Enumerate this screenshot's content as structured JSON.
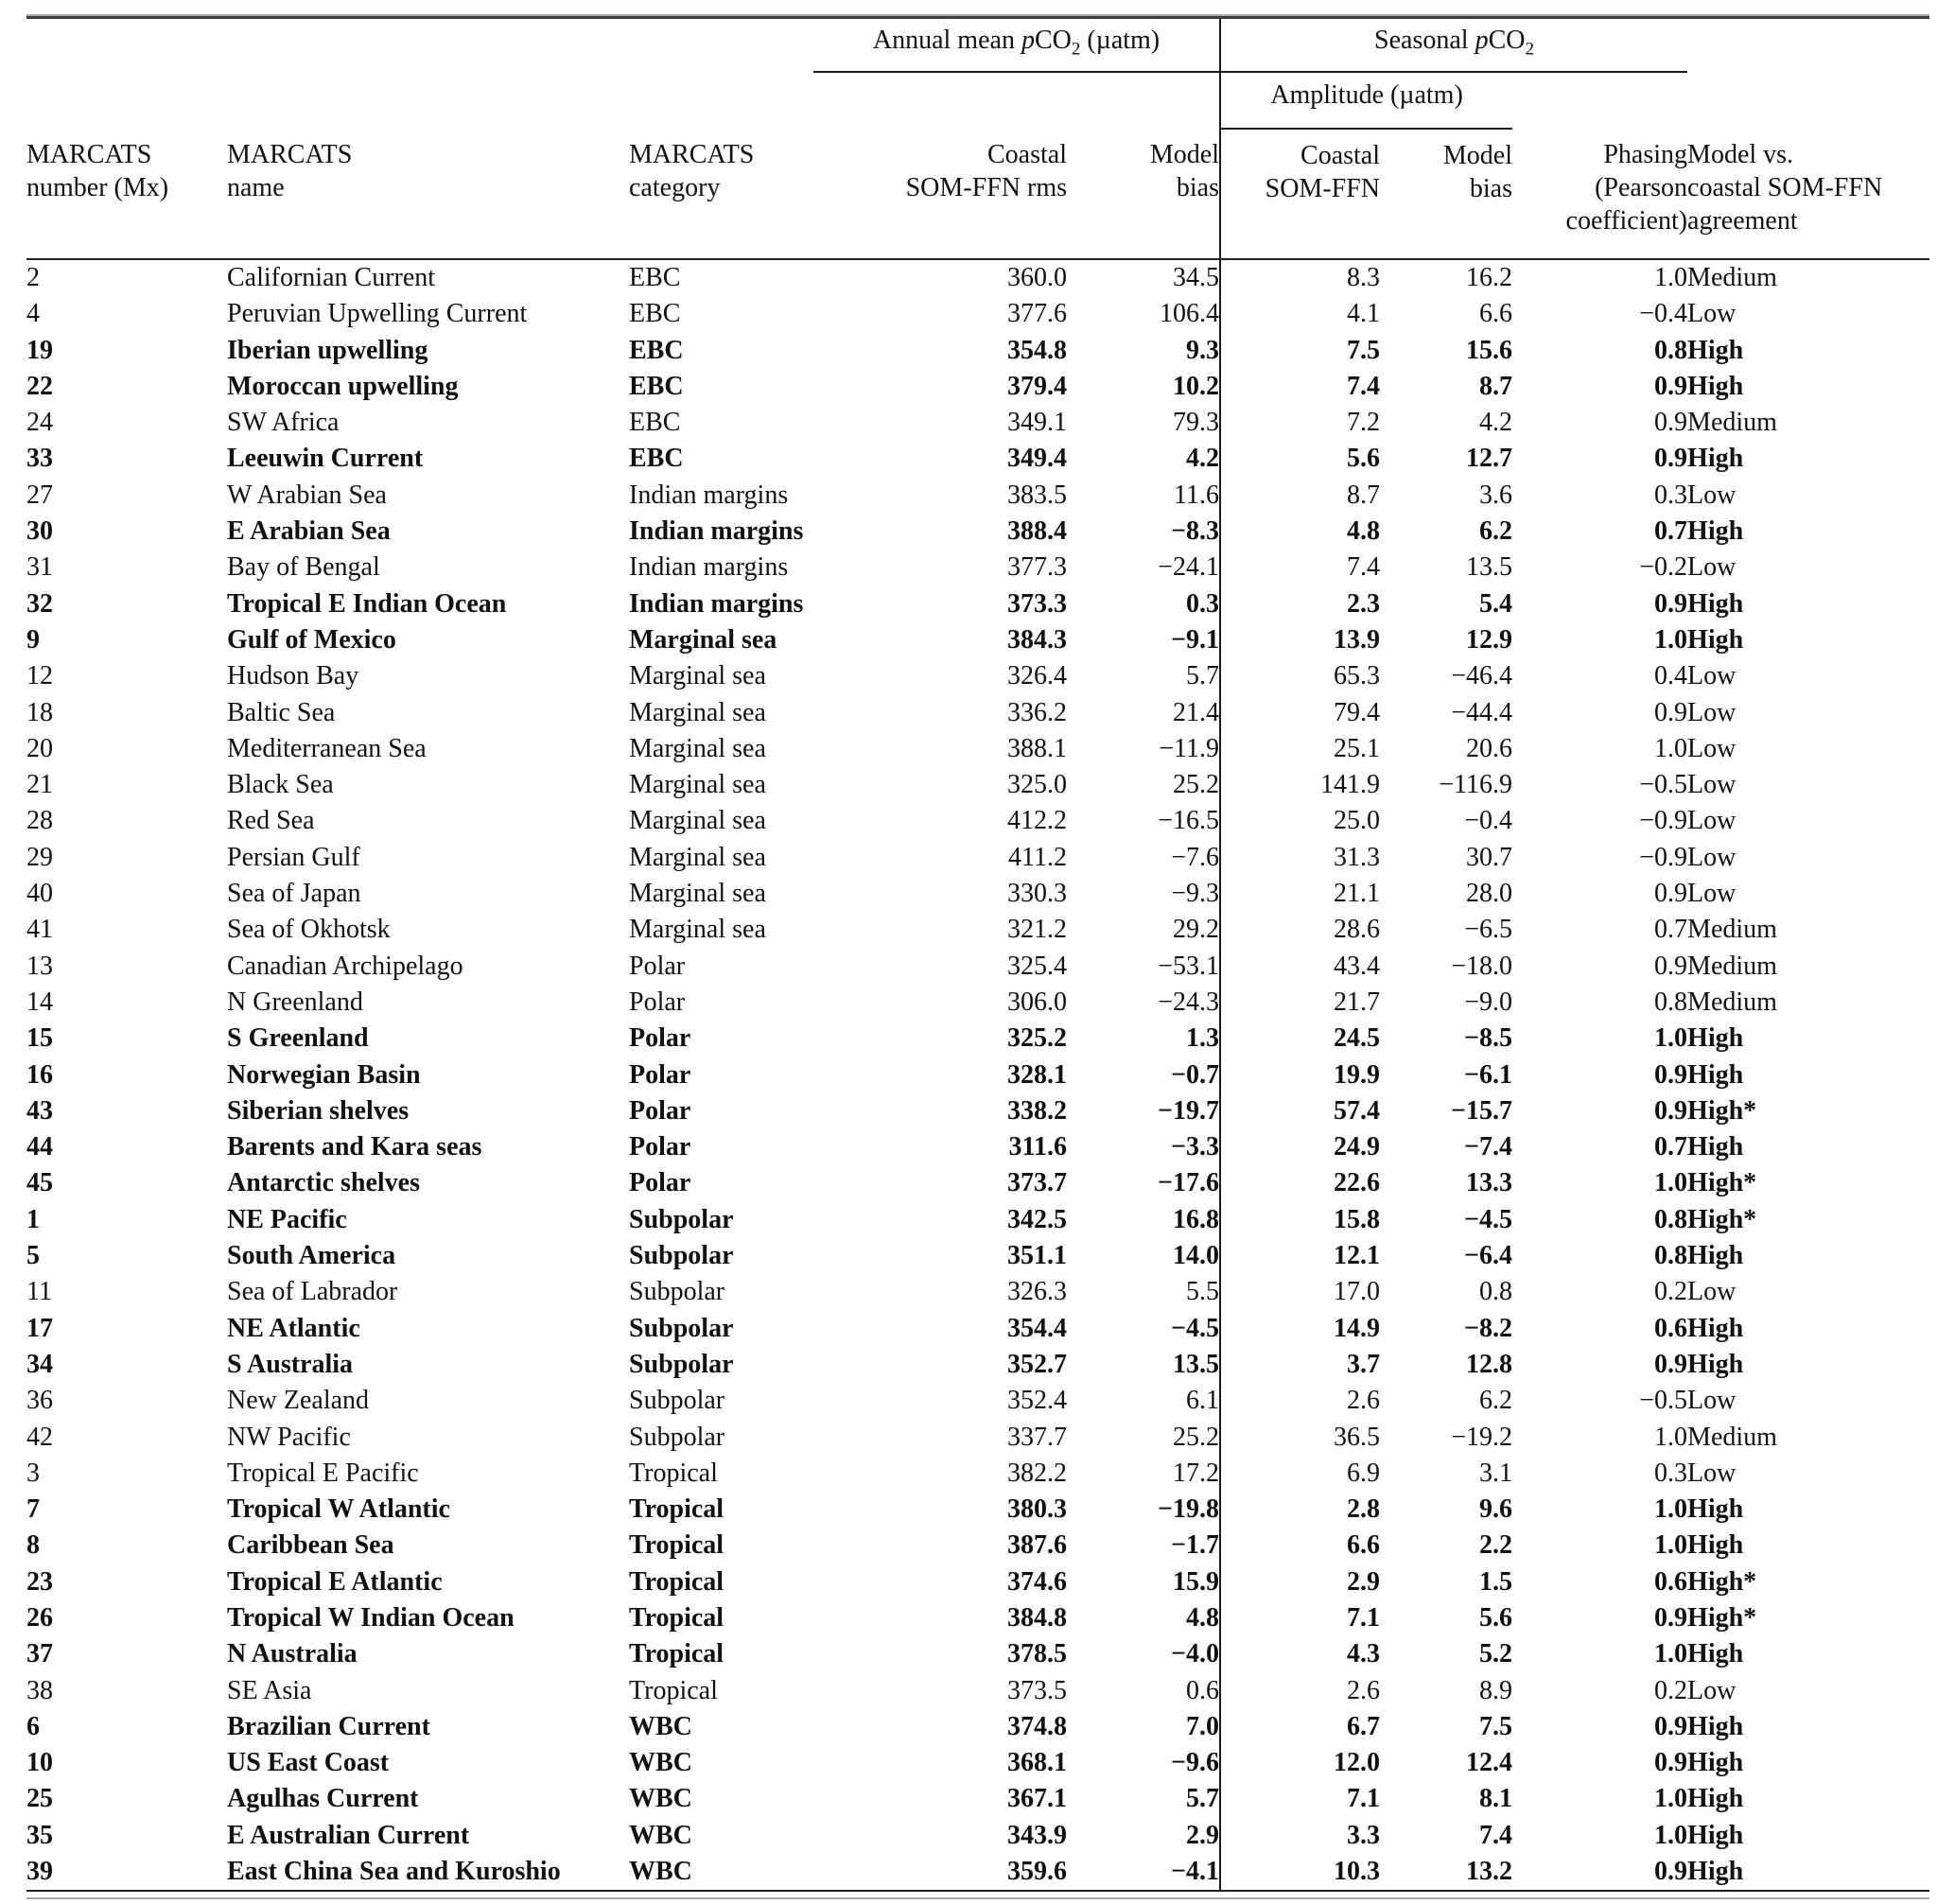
{
  "table": {
    "groups": {
      "annual": "Annual mean pCO2 (µatm)",
      "seasonal": "Seasonal pCO2",
      "amplitude": "Amplitude (µatm)"
    },
    "columns": [
      {
        "id": "mx",
        "lines": [
          "MARCATS",
          "number (Mx)"
        ]
      },
      {
        "id": "name",
        "lines": [
          "MARCATS",
          "name"
        ]
      },
      {
        "id": "category",
        "lines": [
          "MARCATS",
          "category"
        ]
      },
      {
        "id": "rms",
        "lines": [
          "Coastal",
          "SOM-FFN rms"
        ]
      },
      {
        "id": "bias",
        "lines": [
          "Model",
          "bias"
        ]
      },
      {
        "id": "amp",
        "lines": [
          "Coastal",
          "SOM-FFN"
        ]
      },
      {
        "id": "amp-bias",
        "lines": [
          "Model",
          "bias"
        ]
      },
      {
        "id": "phasing",
        "lines": [
          "Phasing",
          "(Pearson",
          "coefficient)"
        ]
      },
      {
        "id": "agreement",
        "lines": [
          "Model vs.",
          "coastal SOM-FFN",
          "agreement"
        ]
      }
    ],
    "rows": [
      {
        "mx": "2",
        "name": "Californian Current",
        "cat": "EBC",
        "rms": "360.0",
        "bias": "34.5",
        "amp": "8.3",
        "amp_bias": "16.2",
        "phasing": "1.0",
        "agreement": "Medium",
        "bold": false
      },
      {
        "mx": "4",
        "name": "Peruvian Upwelling Current",
        "cat": "EBC",
        "rms": "377.6",
        "bias": "106.4",
        "amp": "4.1",
        "amp_bias": "6.6",
        "phasing": "−0.4",
        "agreement": "Low",
        "bold": false
      },
      {
        "mx": "19",
        "name": "Iberian upwelling",
        "cat": "EBC",
        "rms": "354.8",
        "bias": "9.3",
        "amp": "7.5",
        "amp_bias": "15.6",
        "phasing": "0.8",
        "agreement": "High",
        "bold": true
      },
      {
        "mx": "22",
        "name": "Moroccan upwelling",
        "cat": "EBC",
        "rms": "379.4",
        "bias": "10.2",
        "amp": "7.4",
        "amp_bias": "8.7",
        "phasing": "0.9",
        "agreement": "High",
        "bold": true
      },
      {
        "mx": "24",
        "name": "SW Africa",
        "cat": "EBC",
        "rms": "349.1",
        "bias": "79.3",
        "amp": "7.2",
        "amp_bias": "4.2",
        "phasing": "0.9",
        "agreement": "Medium",
        "bold": false
      },
      {
        "mx": "33",
        "name": "Leeuwin Current",
        "cat": "EBC",
        "rms": "349.4",
        "bias": "4.2",
        "amp": "5.6",
        "amp_bias": "12.7",
        "phasing": "0.9",
        "agreement": "High",
        "bold": true
      },
      {
        "mx": "27",
        "name": "W Arabian Sea",
        "cat": "Indian margins",
        "rms": "383.5",
        "bias": "11.6",
        "amp": "8.7",
        "amp_bias": "3.6",
        "phasing": "0.3",
        "agreement": "Low",
        "bold": false
      },
      {
        "mx": "30",
        "name": "E Arabian Sea",
        "cat": "Indian margins",
        "rms": "388.4",
        "bias": "−8.3",
        "amp": "4.8",
        "amp_bias": "6.2",
        "phasing": "0.7",
        "agreement": "High",
        "bold": true
      },
      {
        "mx": "31",
        "name": "Bay of Bengal",
        "cat": "Indian margins",
        "rms": "377.3",
        "bias": "−24.1",
        "amp": "7.4",
        "amp_bias": "13.5",
        "phasing": "−0.2",
        "agreement": "Low",
        "bold": false
      },
      {
        "mx": "32",
        "name": "Tropical E Indian Ocean",
        "cat": "Indian margins",
        "rms": "373.3",
        "bias": "0.3",
        "amp": "2.3",
        "amp_bias": "5.4",
        "phasing": "0.9",
        "agreement": "High",
        "bold": true
      },
      {
        "mx": "9",
        "name": "Gulf of Mexico",
        "cat": "Marginal sea",
        "rms": "384.3",
        "bias": "−9.1",
        "amp": "13.9",
        "amp_bias": "12.9",
        "phasing": "1.0",
        "agreement": "High",
        "bold": true
      },
      {
        "mx": "12",
        "name": "Hudson Bay",
        "cat": "Marginal sea",
        "rms": "326.4",
        "bias": "5.7",
        "amp": "65.3",
        "amp_bias": "−46.4",
        "phasing": "0.4",
        "agreement": "Low",
        "bold": false
      },
      {
        "mx": "18",
        "name": "Baltic Sea",
        "cat": "Marginal sea",
        "rms": "336.2",
        "bias": "21.4",
        "amp": "79.4",
        "amp_bias": "−44.4",
        "phasing": "0.9",
        "agreement": "Low",
        "bold": false
      },
      {
        "mx": "20",
        "name": "Mediterranean Sea",
        "cat": "Marginal sea",
        "rms": "388.1",
        "bias": "−11.9",
        "amp": "25.1",
        "amp_bias": "20.6",
        "phasing": "1.0",
        "agreement": "Low",
        "bold": false
      },
      {
        "mx": "21",
        "name": "Black Sea",
        "cat": "Marginal sea",
        "rms": "325.0",
        "bias": "25.2",
        "amp": "141.9",
        "amp_bias": "−116.9",
        "phasing": "−0.5",
        "agreement": "Low",
        "bold": false
      },
      {
        "mx": "28",
        "name": "Red Sea",
        "cat": "Marginal sea",
        "rms": "412.2",
        "bias": "−16.5",
        "amp": "25.0",
        "amp_bias": "−0.4",
        "phasing": "−0.9",
        "agreement": "Low",
        "bold": false
      },
      {
        "mx": "29",
        "name": "Persian Gulf",
        "cat": "Marginal sea",
        "rms": "411.2",
        "bias": "−7.6",
        "amp": "31.3",
        "amp_bias": "30.7",
        "phasing": "−0.9",
        "agreement": "Low",
        "bold": false
      },
      {
        "mx": "40",
        "name": "Sea of Japan",
        "cat": "Marginal sea",
        "rms": "330.3",
        "bias": "−9.3",
        "amp": "21.1",
        "amp_bias": "28.0",
        "phasing": "0.9",
        "agreement": "Low",
        "bold": false
      },
      {
        "mx": "41",
        "name": "Sea of Okhotsk",
        "cat": "Marginal sea",
        "rms": "321.2",
        "bias": "29.2",
        "amp": "28.6",
        "amp_bias": "−6.5",
        "phasing": "0.7",
        "agreement": "Medium",
        "bold": false
      },
      {
        "mx": "13",
        "name": "Canadian Archipelago",
        "cat": "Polar",
        "rms": "325.4",
        "bias": "−53.1",
        "amp": "43.4",
        "amp_bias": "−18.0",
        "phasing": "0.9",
        "agreement": "Medium",
        "bold": false
      },
      {
        "mx": "14",
        "name": "N Greenland",
        "cat": "Polar",
        "rms": "306.0",
        "bias": "−24.3",
        "amp": "21.7",
        "amp_bias": "−9.0",
        "phasing": "0.8",
        "agreement": "Medium",
        "bold": false
      },
      {
        "mx": "15",
        "name": "S Greenland",
        "cat": "Polar",
        "rms": "325.2",
        "bias": "1.3",
        "amp": "24.5",
        "amp_bias": "−8.5",
        "phasing": "1.0",
        "agreement": "High",
        "bold": true
      },
      {
        "mx": "16",
        "name": "Norwegian Basin",
        "cat": "Polar",
        "rms": "328.1",
        "bias": "−0.7",
        "amp": "19.9",
        "amp_bias": "−6.1",
        "phasing": "0.9",
        "agreement": "High",
        "bold": true
      },
      {
        "mx": "43",
        "name": "Siberian shelves",
        "cat": "Polar",
        "rms": "338.2",
        "bias": "−19.7",
        "amp": "57.4",
        "amp_bias": "−15.7",
        "phasing": "0.9",
        "agreement": "High*",
        "bold": true
      },
      {
        "mx": "44",
        "name": "Barents and Kara seas",
        "cat": "Polar",
        "rms": "311.6",
        "bias": "−3.3",
        "amp": "24.9",
        "amp_bias": "−7.4",
        "phasing": "0.7",
        "agreement": "High",
        "bold": true
      },
      {
        "mx": "45",
        "name": "Antarctic shelves",
        "cat": "Polar",
        "rms": "373.7",
        "bias": "−17.6",
        "amp": "22.6",
        "amp_bias": "13.3",
        "phasing": "1.0",
        "agreement": "High*",
        "bold": true
      },
      {
        "mx": "1",
        "name": "NE Pacific",
        "cat": "Subpolar",
        "rms": "342.5",
        "bias": "16.8",
        "amp": "15.8",
        "amp_bias": "−4.5",
        "phasing": "0.8",
        "agreement": "High*",
        "bold": true
      },
      {
        "mx": "5",
        "name": "South America",
        "cat": "Subpolar",
        "rms": "351.1",
        "bias": "14.0",
        "amp": "12.1",
        "amp_bias": "−6.4",
        "phasing": "0.8",
        "agreement": "High",
        "bold": true
      },
      {
        "mx": "11",
        "name": "Sea of Labrador",
        "cat": "Subpolar",
        "rms": "326.3",
        "bias": "5.5",
        "amp": "17.0",
        "amp_bias": "0.8",
        "phasing": "0.2",
        "agreement": "Low",
        "bold": false
      },
      {
        "mx": "17",
        "name": "NE Atlantic",
        "cat": "Subpolar",
        "rms": "354.4",
        "bias": "−4.5",
        "amp": "14.9",
        "amp_bias": "−8.2",
        "phasing": "0.6",
        "agreement": "High",
        "bold": true
      },
      {
        "mx": "34",
        "name": "S Australia",
        "cat": "Subpolar",
        "rms": "352.7",
        "bias": "13.5",
        "amp": "3.7",
        "amp_bias": "12.8",
        "phasing": "0.9",
        "agreement": "High",
        "bold": true
      },
      {
        "mx": "36",
        "name": "New Zealand",
        "cat": "Subpolar",
        "rms": "352.4",
        "bias": "6.1",
        "amp": "2.6",
        "amp_bias": "6.2",
        "phasing": "−0.5",
        "agreement": "Low",
        "bold": false
      },
      {
        "mx": "42",
        "name": "NW Pacific",
        "cat": "Subpolar",
        "rms": "337.7",
        "bias": "25.2",
        "amp": "36.5",
        "amp_bias": "−19.2",
        "phasing": "1.0",
        "agreement": "Medium",
        "bold": false
      },
      {
        "mx": "3",
        "name": "Tropical E Pacific",
        "cat": "Tropical",
        "rms": "382.2",
        "bias": "17.2",
        "amp": "6.9",
        "amp_bias": "3.1",
        "phasing": "0.3",
        "agreement": "Low",
        "bold": false
      },
      {
        "mx": "7",
        "name": "Tropical W Atlantic",
        "cat": "Tropical",
        "rms": "380.3",
        "bias": "−19.8",
        "amp": "2.8",
        "amp_bias": "9.6",
        "phasing": "1.0",
        "agreement": "High",
        "bold": true
      },
      {
        "mx": "8",
        "name": "Caribbean Sea",
        "cat": "Tropical",
        "rms": "387.6",
        "bias": "−1.7",
        "amp": "6.6",
        "amp_bias": "2.2",
        "phasing": "1.0",
        "agreement": "High",
        "bold": true
      },
      {
        "mx": "23",
        "name": "Tropical E Atlantic",
        "cat": "Tropical",
        "rms": "374.6",
        "bias": "15.9",
        "amp": "2.9",
        "amp_bias": "1.5",
        "phasing": "0.6",
        "agreement": "High*",
        "bold": true
      },
      {
        "mx": "26",
        "name": "Tropical W Indian Ocean",
        "cat": "Tropical",
        "rms": "384.8",
        "bias": "4.8",
        "amp": "7.1",
        "amp_bias": "5.6",
        "phasing": "0.9",
        "agreement": "High*",
        "bold": true
      },
      {
        "mx": "37",
        "name": "N Australia",
        "cat": "Tropical",
        "rms": "378.5",
        "bias": "−4.0",
        "amp": "4.3",
        "amp_bias": "5.2",
        "phasing": "1.0",
        "agreement": "High",
        "bold": true
      },
      {
        "mx": "38",
        "name": "SE Asia",
        "cat": "Tropical",
        "rms": "373.5",
        "bias": "0.6",
        "amp": "2.6",
        "amp_bias": "8.9",
        "phasing": "0.2",
        "agreement": "Low",
        "bold": false
      },
      {
        "mx": "6",
        "name": "Brazilian Current",
        "cat": "WBC",
        "rms": "374.8",
        "bias": "7.0",
        "amp": "6.7",
        "amp_bias": "7.5",
        "phasing": "0.9",
        "agreement": "High",
        "bold": true
      },
      {
        "mx": "10",
        "name": "US East Coast",
        "cat": "WBC",
        "rms": "368.1",
        "bias": "−9.6",
        "amp": "12.0",
        "amp_bias": "12.4",
        "phasing": "0.9",
        "agreement": "High",
        "bold": true
      },
      {
        "mx": "25",
        "name": "Agulhas Current",
        "cat": "WBC",
        "rms": "367.1",
        "bias": "5.7",
        "amp": "7.1",
        "amp_bias": "8.1",
        "phasing": "1.0",
        "agreement": "High",
        "bold": true
      },
      {
        "mx": "35",
        "name": "E Australian Current",
        "cat": "WBC",
        "rms": "343.9",
        "bias": "2.9",
        "amp": "3.3",
        "amp_bias": "7.4",
        "phasing": "1.0",
        "agreement": "High",
        "bold": true
      },
      {
        "mx": "39",
        "name": "East China Sea and Kuroshio",
        "cat": "WBC",
        "rms": "359.6",
        "bias": "−4.1",
        "amp": "10.3",
        "amp_bias": "13.2",
        "phasing": "0.9",
        "agreement": "High",
        "bold": true
      }
    ]
  }
}
